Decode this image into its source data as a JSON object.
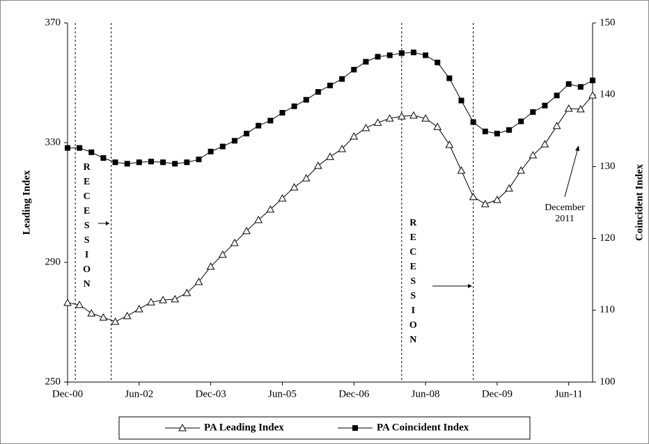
{
  "chart_data": {
    "type": "line",
    "y_label": "Leading Index",
    "y2_label": "Coincident Index",
    "categories": [
      "Dec-00",
      null,
      null,
      null,
      null,
      null,
      "Jun-02",
      null,
      null,
      null,
      null,
      null,
      "Dec-03",
      null,
      null,
      null,
      null,
      null,
      "Jun-05",
      null,
      null,
      null,
      null,
      null,
      "Dec-06",
      null,
      null,
      null,
      null,
      null,
      "Jun-08",
      null,
      null,
      null,
      null,
      null,
      "Dec-09",
      null,
      null,
      null,
      null,
      null,
      "Jun-11",
      null,
      null
    ],
    "series": [
      {
        "name": "PA Leading Index",
        "color": "#000000",
        "marker": "triangle",
        "axis": "y",
        "values": [
          276.5,
          275.8,
          273.0,
          271.6,
          270.2,
          272.1,
          274.4,
          276.7,
          277.4,
          277.7,
          279.8,
          283.5,
          288.6,
          292.6,
          296.5,
          300.5,
          304.2,
          307.7,
          311.4,
          315.1,
          318.1,
          322.3,
          325.3,
          327.9,
          332.1,
          334.9,
          336.7,
          338.1,
          338.8,
          339.1,
          338.1,
          335.3,
          329.3,
          320.7,
          311.9,
          309.5,
          310.9,
          314.7,
          320.7,
          325.8,
          329.5,
          335.6,
          341.4,
          341.2,
          345.8
        ]
      },
      {
        "name": "PA Coincident Index",
        "color": "#000000",
        "marker": "square",
        "axis": "y2",
        "values": [
          132.6,
          132.6,
          132.0,
          131.2,
          130.6,
          130.4,
          130.6,
          130.7,
          130.6,
          130.4,
          130.6,
          131.0,
          132.1,
          132.8,
          133.6,
          134.6,
          135.7,
          136.4,
          137.5,
          138.4,
          139.3,
          140.4,
          141.3,
          142.2,
          143.5,
          144.6,
          145.3,
          145.5,
          145.8,
          145.9,
          145.5,
          144.5,
          142.3,
          139.2,
          136.2,
          134.9,
          134.6,
          135.1,
          136.3,
          137.6,
          138.5,
          139.9,
          141.5,
          141.1,
          142.0
        ]
      }
    ],
    "ylim": [
      250,
      370
    ],
    "yticks": [
      250,
      290,
      330,
      370
    ],
    "y2lim": [
      100,
      150
    ],
    "y2ticks": [
      100,
      110,
      120,
      130,
      140,
      150
    ],
    "recessions": [
      {
        "start": 0.65,
        "end": 3.66,
        "label": "RECESSION"
      },
      {
        "start": 28.0,
        "end": 34.0,
        "label": "RECESSION"
      }
    ],
    "annotation": "December 2011",
    "legend": "bottom"
  }
}
